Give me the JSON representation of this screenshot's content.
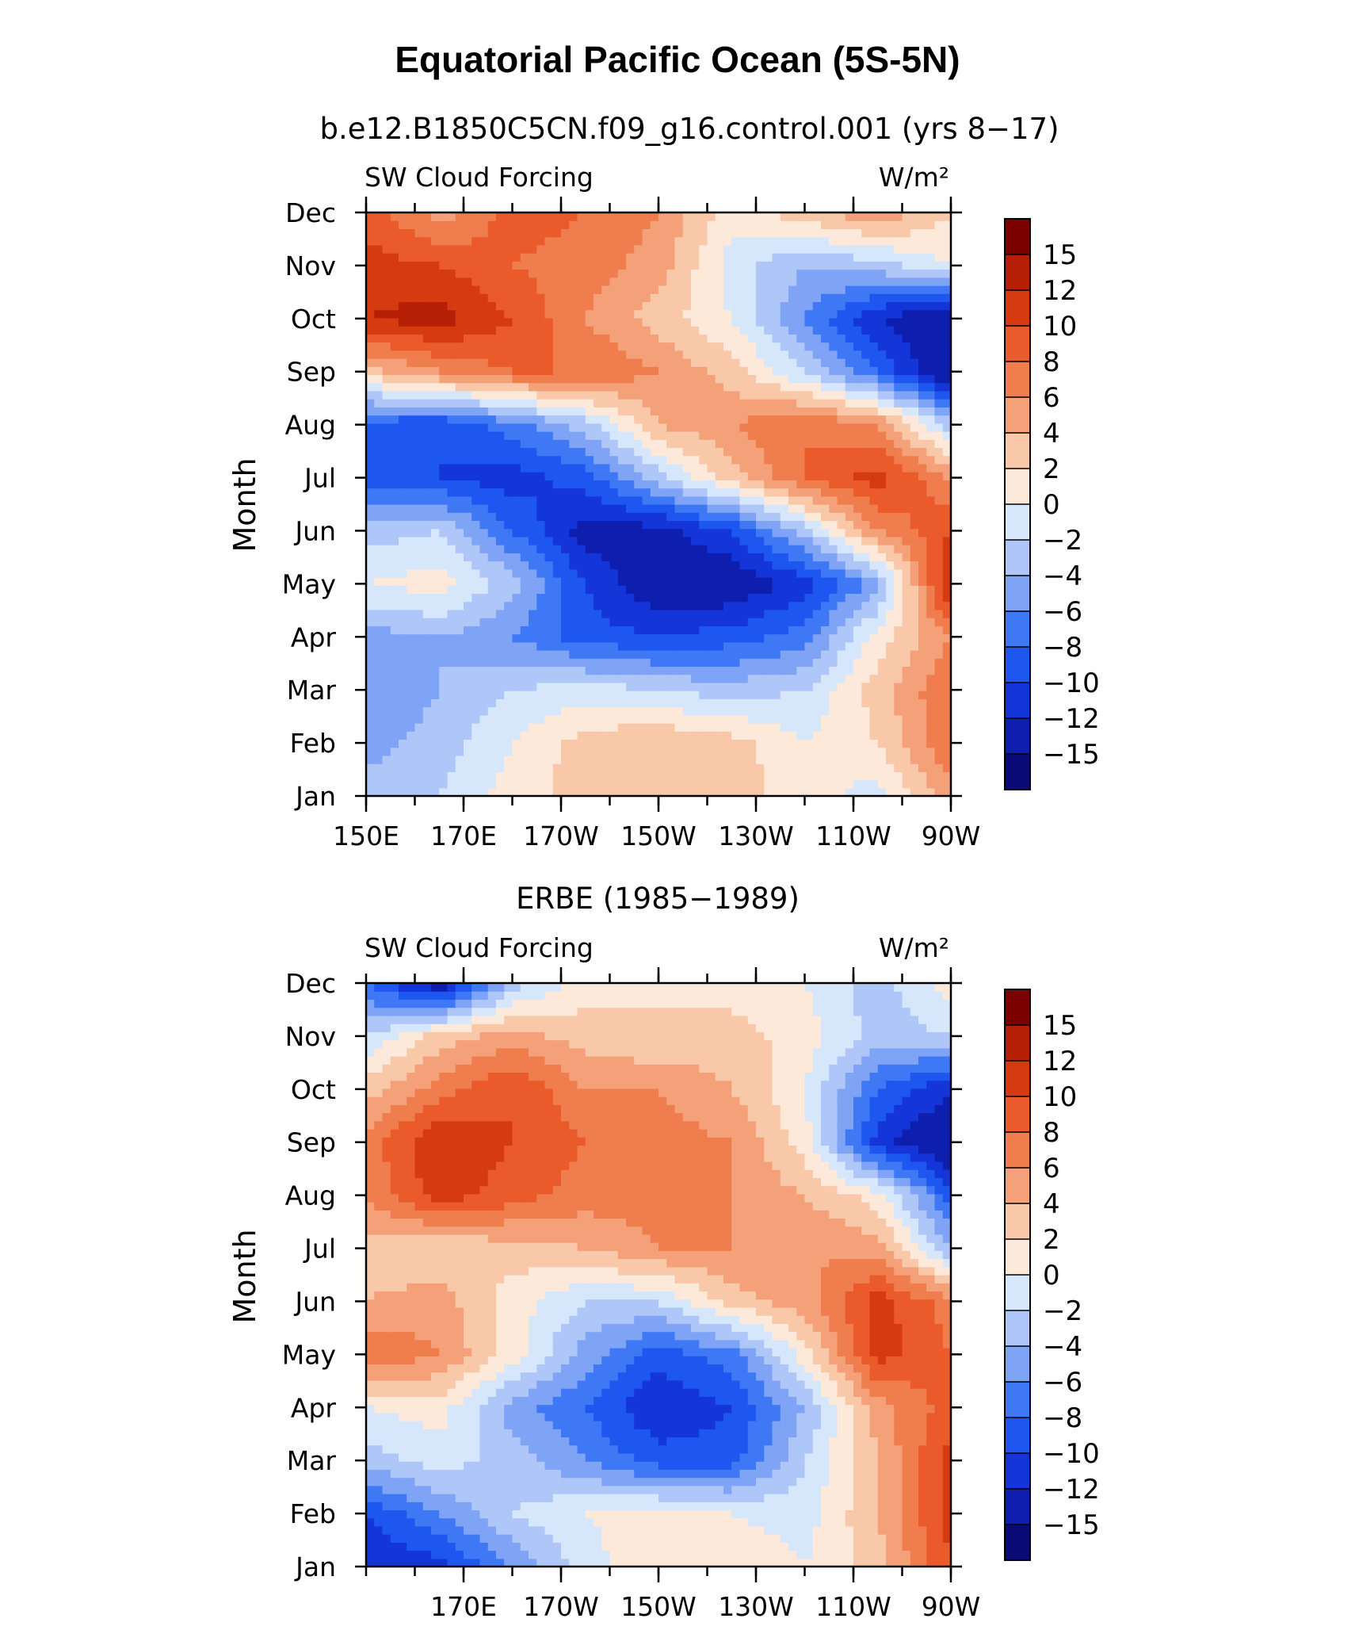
{
  "figure": {
    "title": "Equatorial Pacific Ocean (5S-5N)"
  },
  "legend_colors": [
    "#0b0b78",
    "#0e1fb0",
    "#1436d8",
    "#1e56f0",
    "#3e78f5",
    "#7fa3f5",
    "#aec6f8",
    "#d6e6fb",
    "#fde9da",
    "#f9c8a9",
    "#f4a17a",
    "#f07d4e",
    "#ea5a2a",
    "#d63a10",
    "#b51f06",
    "#7d0000"
  ],
  "chart_data": [
    {
      "type": "heatmap",
      "title": "b.e12.B1850C5CN.f09_g16.control.001 (yrs 8−17)",
      "left_label": "SW Cloud Forcing",
      "right_label": "W/m²",
      "ylabel": "Month",
      "months": [
        "Jan",
        "Feb",
        "Mar",
        "Apr",
        "May",
        "Jun",
        "Jul",
        "Aug",
        "Sep",
        "Oct",
        "Nov",
        "Dec"
      ],
      "lon_ticks": [
        "150E",
        "170E",
        "170W",
        "150W",
        "130W",
        "110W",
        "90W"
      ],
      "levels": [
        "15",
        "12",
        "10",
        "8",
        "6",
        "4",
        "2",
        "0",
        "−2",
        "−4",
        "−6",
        "−8",
        "−10",
        "−12",
        "−15"
      ],
      "x_range_deg_east": [
        150,
        270
      ],
      "x_values_deg_east": [
        150,
        165,
        180,
        195,
        210,
        225,
        240,
        255,
        270
      ],
      "values": [
        [
          -3,
          -2,
          1,
          3,
          4,
          3,
          1,
          -1,
          5
        ],
        [
          -5,
          -3,
          0,
          3,
          4,
          3,
          0,
          2,
          8
        ],
        [
          -6,
          -4,
          -2,
          -1,
          -2,
          -3,
          -2,
          3,
          8
        ],
        [
          -5,
          -4,
          -6,
          -9,
          -10,
          -9,
          -7,
          1,
          6
        ],
        [
          0,
          1,
          -3,
          -10,
          -14,
          -14,
          -11,
          -5,
          13
        ],
        [
          -3,
          -2,
          -8,
          -13,
          -13,
          -10,
          -3,
          6,
          10
        ],
        [
          -9,
          -10,
          -11,
          -9,
          -3,
          3,
          8,
          11,
          6
        ],
        [
          -9,
          -10,
          -7,
          -3,
          4,
          6,
          8,
          6,
          -3
        ],
        [
          3,
          6,
          8,
          8,
          6,
          3,
          -2,
          -8,
          -15
        ],
        [
          12,
          13,
          10,
          6,
          3,
          0,
          -6,
          -12,
          -15
        ],
        [
          11,
          10,
          8,
          7,
          5,
          -1,
          -4,
          -3,
          0
        ],
        [
          9,
          5,
          9,
          8,
          6,
          1,
          3,
          6,
          2
        ]
      ]
    },
    {
      "type": "heatmap",
      "title": "ERBE (1985−1989)",
      "left_label": "SW Cloud Forcing",
      "right_label": "W/m²",
      "ylabel": "Month",
      "months": [
        "Jan",
        "Feb",
        "Mar",
        "Apr",
        "May",
        "Jun",
        "Jul",
        "Aug",
        "Sep",
        "Oct",
        "Nov",
        "Dec"
      ],
      "lon_ticks": [
        "170E",
        "170W",
        "150W",
        "130W",
        "110W",
        "90W"
      ],
      "levels": [
        "15",
        "12",
        "10",
        "8",
        "6",
        "4",
        "2",
        "0",
        "−2",
        "−4",
        "−6",
        "−8",
        "−10",
        "−12",
        "−15"
      ],
      "x_range_deg_east": [
        150,
        270
      ],
      "x_values_deg_east": [
        150,
        165,
        180,
        195,
        210,
        225,
        240,
        255,
        270
      ],
      "values": [
        [
          -12,
          -11,
          -6,
          -1,
          2,
          2,
          0,
          3,
          10
        ],
        [
          -10,
          -6,
          -2,
          0,
          1,
          0,
          -1,
          4,
          11
        ],
        [
          -3,
          -1,
          -3,
          -6,
          -9,
          -9,
          -2,
          4,
          11
        ],
        [
          0,
          1,
          -5,
          -8,
          -12,
          -10,
          -4,
          5,
          9
        ],
        [
          8,
          6,
          1,
          -5,
          -9,
          -7,
          1,
          11,
          8
        ],
        [
          4,
          5,
          1,
          -2,
          -2,
          3,
          5,
          11,
          7
        ],
        [
          3,
          2,
          3,
          4,
          6,
          6,
          6,
          5,
          -4
        ],
        [
          6,
          11,
          9,
          7,
          7,
          6,
          4,
          1,
          -9
        ],
        [
          7,
          12,
          10,
          8,
          7,
          6,
          1,
          -11,
          -15
        ],
        [
          3,
          7,
          10,
          6,
          6,
          4,
          0,
          -8,
          -12
        ],
        [
          -2,
          3,
          5,
          3,
          2,
          3,
          1,
          -3,
          -2
        ],
        [
          -8,
          -14,
          -3,
          1,
          2,
          1,
          0,
          -3,
          1
        ]
      ]
    }
  ]
}
